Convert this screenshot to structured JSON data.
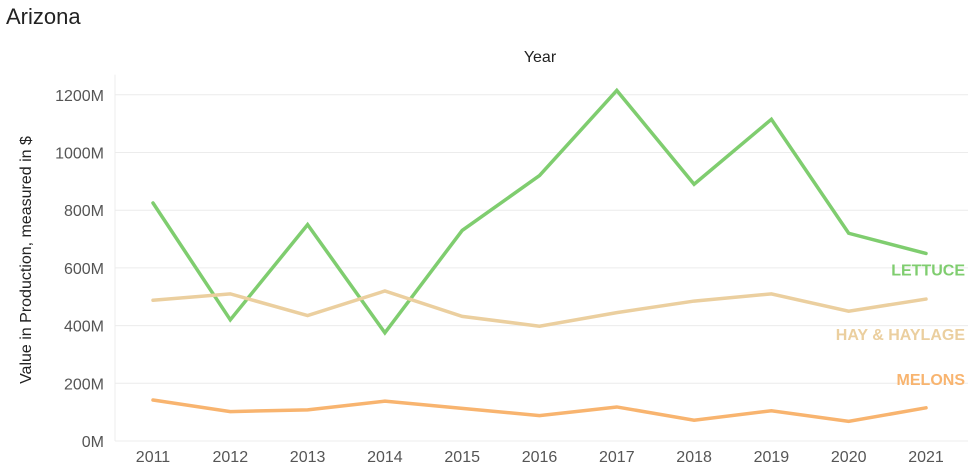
{
  "page": {
    "title": "Arizona"
  },
  "chart_data": {
    "type": "line",
    "title": "Arizona",
    "xlabel": "Year",
    "ylabel": "Value in Production, measured in $",
    "x_axis_position": "top",
    "categories": [
      "2011",
      "2012",
      "2013",
      "2014",
      "2015",
      "2016",
      "2017",
      "2018",
      "2019",
      "2020",
      "2021"
    ],
    "y_ticks": [
      0,
      200,
      400,
      600,
      800,
      1000,
      1200
    ],
    "y_tick_labels": [
      "0M",
      "200M",
      "400M",
      "600M",
      "800M",
      "1000M",
      "1200M"
    ],
    "ylim": [
      0,
      1200
    ],
    "y_unit": "millions of $",
    "grid": true,
    "legend": "direct labels at line ends (right)",
    "series": [
      {
        "name": "LETTUCE",
        "color": "#7fcd6f",
        "values": [
          825,
          420,
          750,
          375,
          730,
          920,
          1215,
          890,
          1115,
          720,
          650
        ]
      },
      {
        "name": "HAY & HAYLAGE",
        "color": "#ebcf9f",
        "values": [
          488,
          510,
          435,
          520,
          432,
          398,
          445,
          485,
          510,
          450,
          492
        ]
      },
      {
        "name": "MELONS",
        "color": "#f8b46f",
        "values": [
          142,
          102,
          108,
          138,
          113,
          88,
          118,
          72,
          105,
          68,
          115
        ]
      }
    ]
  }
}
